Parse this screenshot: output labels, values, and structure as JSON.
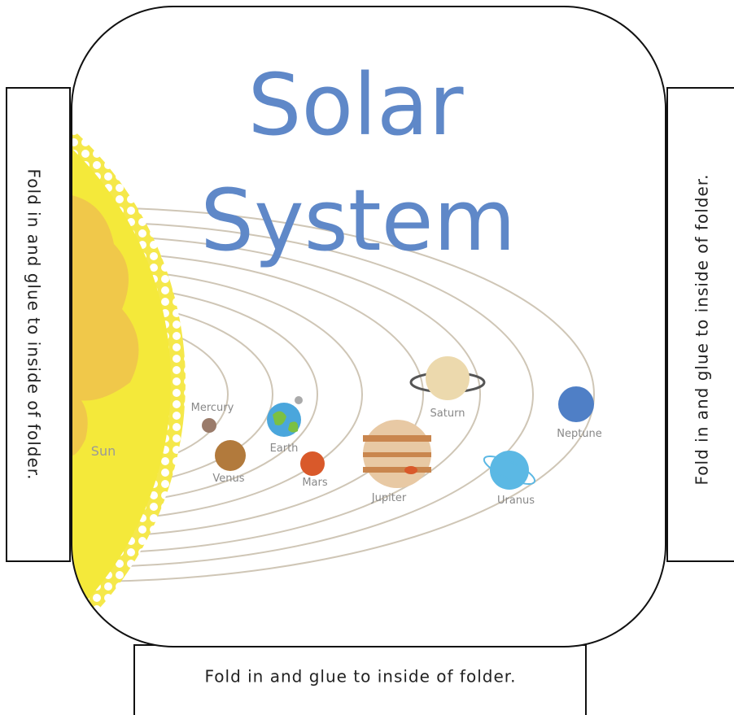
{
  "title": [
    "Solar",
    "System"
  ],
  "tabs": {
    "left": "Fold in and glue to inside of folder.",
    "right": "Fold in and glue to inside of folder.",
    "bottom": "Fold in and glue to inside of folder."
  },
  "labels": {
    "sun": "Sun",
    "mercury": "Mercury",
    "venus": "Venus",
    "earth": "Earth",
    "mars": "Mars",
    "jupiter": "Jupiter",
    "saturn": "Saturn",
    "uranus": "Uranus",
    "neptune": "Neptune"
  }
}
